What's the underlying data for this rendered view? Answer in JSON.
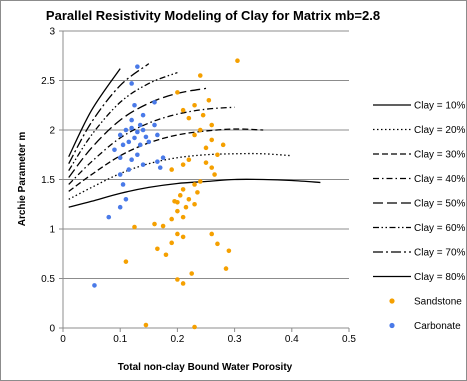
{
  "chart_data": {
    "type": "scatter",
    "title": "Parallel Resistivity Modeling of Clay for Matrix mb=2.8",
    "xlabel": "Total non-clay Bound Water Porosity",
    "ylabel": "Archie Parameter m",
    "xlim": [
      0,
      0.5
    ],
    "ylim": [
      0,
      3
    ],
    "xticks": [
      "0",
      "0.1",
      "0.2",
      "0.3",
      "0.4",
      "0.5"
    ],
    "yticks": [
      "0",
      "0.5",
      "1",
      "1.5",
      "2",
      "2.5",
      "3"
    ],
    "grid": "horizontal",
    "legend_position": "right",
    "lines": [
      {
        "name": "Clay = 10%",
        "dash": "solid",
        "color": "#000000",
        "x": [
          0.01,
          0.05,
          0.1,
          0.15,
          0.2,
          0.25,
          0.3,
          0.35,
          0.4,
          0.45
        ],
        "y": [
          1.22,
          1.28,
          1.36,
          1.42,
          1.46,
          1.48,
          1.5,
          1.5,
          1.49,
          1.47
        ]
      },
      {
        "name": "Clay = 20%",
        "dash": "dot",
        "color": "#000000",
        "x": [
          0.01,
          0.05,
          0.1,
          0.15,
          0.2,
          0.25,
          0.3,
          0.35,
          0.4
        ],
        "y": [
          1.3,
          1.42,
          1.56,
          1.66,
          1.72,
          1.75,
          1.76,
          1.76,
          1.74
        ]
      },
      {
        "name": "Clay = 30%",
        "dash": "dash",
        "color": "#000000",
        "x": [
          0.01,
          0.05,
          0.1,
          0.15,
          0.2,
          0.25,
          0.3,
          0.35
        ],
        "y": [
          1.38,
          1.55,
          1.74,
          1.87,
          1.95,
          1.99,
          2.01,
          2.0
        ]
      },
      {
        "name": "Clay = 40%",
        "dash": "dashdot",
        "color": "#000000",
        "x": [
          0.01,
          0.05,
          0.1,
          0.15,
          0.2,
          0.25,
          0.3
        ],
        "y": [
          1.45,
          1.68,
          1.92,
          2.07,
          2.16,
          2.21,
          2.23
        ]
      },
      {
        "name": "Clay = 50%",
        "dash": "longdash",
        "color": "#000000",
        "x": [
          0.01,
          0.05,
          0.1,
          0.15,
          0.2,
          0.25
        ],
        "y": [
          1.52,
          1.82,
          2.1,
          2.27,
          2.37,
          2.42
        ]
      },
      {
        "name": "Clay = 60%",
        "dash": "dashdotdot",
        "color": "#000000",
        "x": [
          0.01,
          0.05,
          0.1,
          0.15,
          0.2
        ],
        "y": [
          1.59,
          1.95,
          2.28,
          2.47,
          2.58
        ]
      },
      {
        "name": "Clay = 70%",
        "dash": "longdashdot",
        "color": "#000000",
        "x": [
          0.01,
          0.05,
          0.1,
          0.15
        ],
        "y": [
          1.66,
          2.08,
          2.45,
          2.67
        ]
      },
      {
        "name": "Clay = 80%",
        "dash": "solid",
        "color": "#000000",
        "x": [
          0.01,
          0.05,
          0.1
        ],
        "y": [
          1.73,
          2.2,
          2.62
        ]
      }
    ],
    "series": [
      {
        "name": "Sandstone",
        "color": "#f5a000",
        "points": [
          [
            0.145,
            0.03
          ],
          [
            0.23,
            0.01
          ],
          [
            0.11,
            0.67
          ],
          [
            0.285,
            0.6
          ],
          [
            0.29,
            0.78
          ],
          [
            0.2,
            0.49
          ],
          [
            0.21,
            0.45
          ],
          [
            0.225,
            0.55
          ],
          [
            0.18,
            0.74
          ],
          [
            0.19,
            0.86
          ],
          [
            0.21,
            0.92
          ],
          [
            0.2,
            0.95
          ],
          [
            0.26,
            0.95
          ],
          [
            0.27,
            0.85
          ],
          [
            0.165,
            0.8
          ],
          [
            0.125,
            1.02
          ],
          [
            0.16,
            1.05
          ],
          [
            0.175,
            1.03
          ],
          [
            0.19,
            1.1
          ],
          [
            0.21,
            1.12
          ],
          [
            0.2,
            1.18
          ],
          [
            0.215,
            1.22
          ],
          [
            0.23,
            1.25
          ],
          [
            0.2,
            1.27
          ],
          [
            0.22,
            1.3
          ],
          [
            0.205,
            1.34
          ],
          [
            0.195,
            1.28
          ],
          [
            0.235,
            1.37
          ],
          [
            0.21,
            1.4
          ],
          [
            0.23,
            1.45
          ],
          [
            0.24,
            1.48
          ],
          [
            0.265,
            1.55
          ],
          [
            0.19,
            1.6
          ],
          [
            0.21,
            1.65
          ],
          [
            0.25,
            1.67
          ],
          [
            0.26,
            1.62
          ],
          [
            0.22,
            1.7
          ],
          [
            0.27,
            1.75
          ],
          [
            0.25,
            1.82
          ],
          [
            0.26,
            1.9
          ],
          [
            0.28,
            1.85
          ],
          [
            0.23,
            1.95
          ],
          [
            0.24,
            2.0
          ],
          [
            0.26,
            2.05
          ],
          [
            0.22,
            2.12
          ],
          [
            0.245,
            2.15
          ],
          [
            0.21,
            2.2
          ],
          [
            0.23,
            2.25
          ],
          [
            0.255,
            2.3
          ],
          [
            0.2,
            2.38
          ],
          [
            0.24,
            2.55
          ],
          [
            0.305,
            2.7
          ]
        ]
      },
      {
        "name": "Carbonate",
        "color": "#4a7ae8",
        "points": [
          [
            0.055,
            0.43
          ],
          [
            0.08,
            1.12
          ],
          [
            0.1,
            1.22
          ],
          [
            0.11,
            1.3
          ],
          [
            0.105,
            1.45
          ],
          [
            0.1,
            1.55
          ],
          [
            0.115,
            1.6
          ],
          [
            0.12,
            1.7
          ],
          [
            0.1,
            1.72
          ],
          [
            0.09,
            1.8
          ],
          [
            0.105,
            1.85
          ],
          [
            0.115,
            1.88
          ],
          [
            0.125,
            1.92
          ],
          [
            0.1,
            1.95
          ],
          [
            0.13,
            1.98
          ],
          [
            0.12,
            2.02
          ],
          [
            0.14,
            2.0
          ],
          [
            0.145,
            1.93
          ],
          [
            0.135,
            1.85
          ],
          [
            0.15,
            1.88
          ],
          [
            0.165,
            1.95
          ],
          [
            0.16,
            2.05
          ],
          [
            0.175,
            1.72
          ],
          [
            0.165,
            1.68
          ],
          [
            0.13,
            1.75
          ],
          [
            0.12,
            2.1
          ],
          [
            0.14,
            2.15
          ],
          [
            0.125,
            2.25
          ],
          [
            0.135,
            2.05
          ],
          [
            0.11,
            2.0
          ],
          [
            0.16,
            2.28
          ],
          [
            0.12,
            2.47
          ],
          [
            0.13,
            2.64
          ],
          [
            0.17,
            1.62
          ],
          [
            0.14,
            1.65
          ]
        ]
      }
    ]
  }
}
